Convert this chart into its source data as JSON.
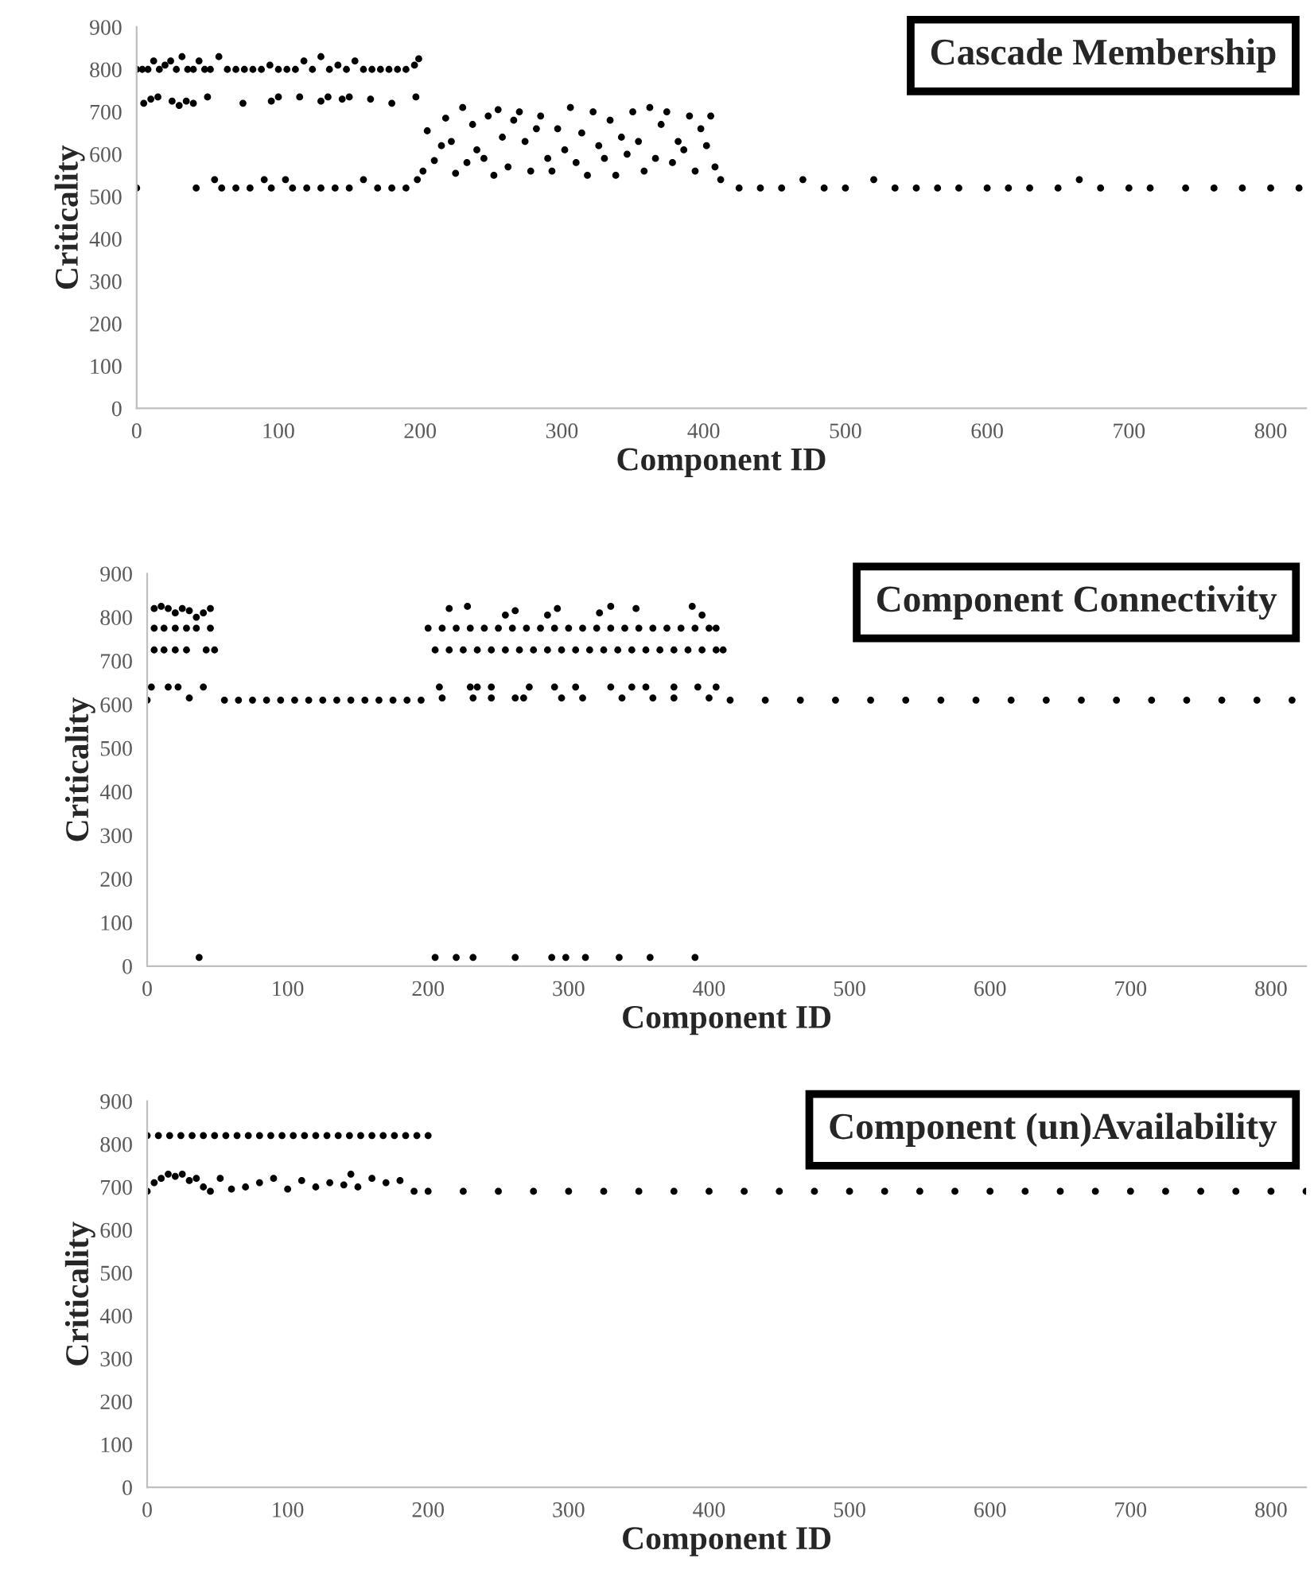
{
  "chart_data": [
    {
      "type": "scatter",
      "title": "Cascade Membership",
      "xlabel": "Component ID",
      "ylabel": "Criticality",
      "xlim": [
        0,
        825
      ],
      "ylim": [
        0,
        900
      ],
      "xticks": [
        0,
        100,
        200,
        300,
        400,
        500,
        600,
        700,
        800
      ],
      "yticks": [
        0,
        100,
        200,
        300,
        400,
        500,
        600,
        700,
        800,
        900
      ],
      "marker": "circle",
      "grid": false,
      "legend": false,
      "series": [
        {
          "color": "#000000",
          "x": [
            0,
            4,
            8,
            12,
            16,
            20,
            24,
            28,
            32,
            36,
            40,
            44,
            48,
            52,
            58,
            64,
            70,
            76,
            82,
            88,
            94,
            100,
            106,
            112,
            118,
            124,
            130,
            136,
            142,
            148,
            154,
            160,
            166,
            172,
            178,
            184,
            190,
            196,
            199
          ],
          "values": [
            800,
            800,
            800,
            820,
            800,
            810,
            820,
            800,
            830,
            800,
            800,
            820,
            800,
            800,
            830,
            800,
            800,
            800,
            800,
            800,
            810,
            800,
            800,
            800,
            820,
            800,
            830,
            800,
            810,
            800,
            820,
            800,
            800,
            800,
            800,
            800,
            800,
            810,
            825
          ]
        },
        {
          "color": "#000000",
          "x": [
            5,
            10,
            15,
            25,
            30,
            35,
            40,
            50,
            75,
            95,
            100,
            115,
            130,
            135,
            145,
            150,
            165,
            180,
            197
          ],
          "values": [
            720,
            730,
            735,
            725,
            715,
            725,
            720,
            735,
            720,
            725,
            735,
            735,
            725,
            735,
            730,
            735,
            730,
            720,
            735
          ]
        },
        {
          "color": "#000000",
          "x": [
            0,
            42,
            55,
            60,
            70,
            80,
            90,
            95,
            105,
            110,
            120,
            130,
            140,
            150,
            160,
            170,
            180,
            190,
            198
          ],
          "values": [
            520,
            520,
            540,
            520,
            520,
            520,
            540,
            520,
            540,
            520,
            520,
            520,
            520,
            520,
            540,
            520,
            520,
            520,
            540
          ]
        },
        {
          "color": "#000000",
          "x": [
            202,
            205,
            210,
            215,
            218,
            222,
            225,
            230,
            233,
            237,
            240,
            245,
            248,
            252,
            255,
            258,
            262,
            266,
            270,
            274,
            278,
            282,
            285,
            290,
            293,
            297,
            302,
            306,
            310,
            314,
            318,
            322,
            326,
            330,
            334,
            338,
            342,
            346,
            350,
            354,
            358,
            362,
            366,
            370,
            374,
            378,
            382,
            386,
            390,
            394,
            398,
            402,
            405,
            408,
            412
          ],
          "values": [
            560,
            655,
            585,
            620,
            685,
            630,
            555,
            710,
            580,
            670,
            610,
            590,
            690,
            550,
            705,
            640,
            570,
            680,
            700,
            630,
            560,
            660,
            690,
            590,
            560,
            660,
            610,
            710,
            580,
            650,
            550,
            700,
            620,
            590,
            680,
            550,
            640,
            600,
            700,
            630,
            560,
            710,
            590,
            670,
            700,
            580,
            630,
            610,
            690,
            560,
            660,
            620,
            690,
            570,
            540
          ]
        },
        {
          "color": "#000000",
          "x": [
            425,
            440,
            455,
            470,
            485,
            500,
            520,
            535,
            550,
            565,
            580,
            600,
            615,
            630,
            650,
            665,
            680,
            700,
            715,
            740,
            760,
            780,
            800,
            820
          ],
          "values": [
            520,
            520,
            520,
            540,
            520,
            520,
            540,
            520,
            520,
            520,
            520,
            520,
            520,
            520,
            520,
            540,
            520,
            520,
            520,
            520,
            520,
            520,
            520,
            520
          ]
        }
      ]
    },
    {
      "type": "scatter",
      "title": "Component Connectivity",
      "xlabel": "Component ID",
      "ylabel": "Criticality",
      "xlim": [
        0,
        825
      ],
      "ylim": [
        0,
        900
      ],
      "xticks": [
        0,
        100,
        200,
        300,
        400,
        500,
        600,
        700,
        800
      ],
      "yticks": [
        0,
        100,
        200,
        300,
        400,
        500,
        600,
        700,
        800,
        900
      ],
      "marker": "circle",
      "grid": false,
      "legend": false,
      "series": [
        {
          "color": "#000000",
          "x": [
            0,
            3,
            5,
            10,
            15,
            20,
            25,
            30,
            35,
            40,
            45
          ],
          "values": [
            610,
            640,
            820,
            825,
            820,
            810,
            820,
            815,
            800,
            810,
            820
          ]
        },
        {
          "color": "#000000",
          "x": [
            5,
            12,
            20,
            28,
            35,
            45,
            5,
            12,
            20,
            28,
            42,
            48,
            15,
            22,
            30,
            40,
            37
          ],
          "values": [
            775,
            775,
            775,
            775,
            775,
            775,
            725,
            725,
            725,
            725,
            725,
            725,
            640,
            640,
            615,
            640,
            20
          ]
        },
        {
          "color": "#000000",
          "x": [
            55,
            65,
            75,
            85,
            95,
            105,
            115,
            125,
            135,
            145,
            155,
            165,
            175,
            185,
            195
          ],
          "values": [
            610,
            610,
            610,
            610,
            610,
            610,
            610,
            610,
            610,
            610,
            610,
            610,
            610,
            610,
            610
          ]
        },
        {
          "color": "#000000",
          "x": [
            200,
            210,
            220,
            230,
            240,
            250,
            260,
            270,
            280,
            290,
            300,
            310,
            320,
            330,
            340,
            350,
            360,
            370,
            380,
            390,
            400,
            405
          ],
          "values": [
            775,
            775,
            775,
            775,
            775,
            775,
            775,
            775,
            775,
            775,
            775,
            775,
            775,
            775,
            775,
            775,
            775,
            775,
            775,
            775,
            775,
            775
          ]
        },
        {
          "color": "#000000",
          "x": [
            205,
            215,
            225,
            235,
            245,
            255,
            265,
            275,
            285,
            295,
            305,
            315,
            325,
            335,
            345,
            355,
            365,
            375,
            385,
            395,
            405,
            410
          ],
          "values": [
            725,
            725,
            725,
            725,
            725,
            725,
            725,
            725,
            725,
            725,
            725,
            725,
            725,
            725,
            725,
            725,
            725,
            725,
            725,
            725,
            725,
            725
          ]
        },
        {
          "color": "#000000",
          "x": [
            208,
            230,
            235,
            245,
            272,
            290,
            305,
            330,
            345,
            355,
            375,
            392,
            405,
            210,
            232,
            245,
            262,
            268,
            295,
            310,
            338,
            360,
            375,
            400
          ],
          "values": [
            640,
            640,
            640,
            640,
            640,
            640,
            640,
            640,
            640,
            640,
            640,
            640,
            640,
            615,
            615,
            615,
            615,
            615,
            615,
            615,
            615,
            615,
            615,
            615
          ]
        },
        {
          "color": "#000000",
          "x": [
            215,
            228,
            255,
            262,
            285,
            292,
            322,
            330,
            348,
            388,
            395,
            205,
            220,
            232,
            262,
            288,
            298,
            312,
            336,
            358,
            390
          ],
          "values": [
            820,
            825,
            805,
            815,
            805,
            820,
            810,
            825,
            820,
            825,
            805,
            20,
            20,
            20,
            20,
            20,
            20,
            20,
            20,
            20,
            20
          ]
        },
        {
          "color": "#000000",
          "x": [
            415,
            440,
            465,
            490,
            515,
            540,
            565,
            590,
            615,
            640,
            665,
            690,
            715,
            740,
            765,
            790,
            815
          ],
          "values": [
            610,
            610,
            610,
            610,
            610,
            610,
            610,
            610,
            610,
            610,
            610,
            610,
            610,
            610,
            610,
            610,
            610
          ]
        }
      ]
    },
    {
      "type": "scatter",
      "title": "Component (un)Availability",
      "xlabel": "Component ID",
      "ylabel": "Criticality",
      "xlim": [
        0,
        825
      ],
      "ylim": [
        0,
        900
      ],
      "xticks": [
        0,
        100,
        200,
        300,
        400,
        500,
        600,
        700,
        800
      ],
      "yticks": [
        0,
        100,
        200,
        300,
        400,
        500,
        600,
        700,
        800,
        900
      ],
      "marker": "circle",
      "grid": false,
      "legend": false,
      "series": [
        {
          "color": "#000000",
          "x": [
            0,
            8,
            16,
            24,
            32,
            40,
            48,
            56,
            64,
            72,
            80,
            88,
            96,
            104,
            112,
            120,
            128,
            136,
            144,
            152,
            160,
            168,
            176,
            184,
            192,
            200
          ],
          "values": [
            820,
            820,
            820,
            820,
            820,
            820,
            820,
            820,
            820,
            820,
            820,
            820,
            820,
            820,
            820,
            820,
            820,
            820,
            820,
            820,
            820,
            820,
            820,
            820,
            820,
            820
          ]
        },
        {
          "color": "#000000",
          "x": [
            0,
            5,
            10,
            15,
            20,
            25,
            30,
            35,
            40,
            45,
            52,
            60,
            70,
            80,
            90,
            100,
            110,
            120,
            130,
            140,
            145,
            150,
            160,
            170,
            180,
            190
          ],
          "values": [
            690,
            710,
            720,
            730,
            725,
            730,
            715,
            720,
            700,
            690,
            720,
            695,
            700,
            710,
            720,
            695,
            715,
            700,
            710,
            705,
            730,
            700,
            720,
            710,
            715,
            690
          ]
        },
        {
          "color": "#000000",
          "x": [
            200,
            225,
            250,
            275,
            300,
            325,
            350,
            375,
            400,
            425,
            450,
            475,
            500,
            525,
            550,
            575,
            600,
            625,
            650,
            675,
            700,
            725,
            750,
            775,
            800,
            825
          ],
          "values": [
            690,
            690,
            690,
            690,
            690,
            690,
            690,
            690,
            690,
            690,
            690,
            690,
            690,
            690,
            690,
            690,
            690,
            690,
            690,
            690,
            690,
            690,
            690,
            690,
            690,
            690
          ]
        }
      ]
    }
  ]
}
